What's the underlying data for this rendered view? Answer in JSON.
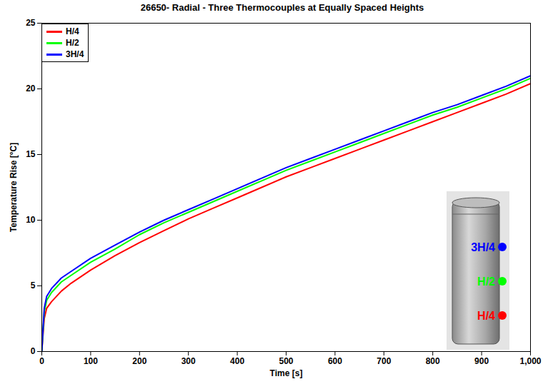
{
  "chart_data": {
    "type": "line",
    "title": "26650- Radial - Three Thermocouples at Equally Spaced Heights",
    "x_label": "Time [s]",
    "y_label": "Temperature Rise [°C]",
    "x": [
      0,
      5,
      10,
      20,
      40,
      60,
      100,
      150,
      200,
      250,
      300,
      350,
      400,
      450,
      500,
      550,
      600,
      650,
      700,
      750,
      800,
      850,
      900,
      950,
      1000
    ],
    "series": [
      {
        "name": "H/4",
        "color": "#ff0000",
        "values": [
          0,
          2.5,
          3.3,
          3.8,
          4.6,
          5.2,
          6.2,
          7.3,
          8.3,
          9.2,
          10.1,
          10.9,
          11.7,
          12.5,
          13.3,
          14.0,
          14.7,
          15.4,
          16.1,
          16.8,
          17.5,
          18.2,
          18.9,
          19.6,
          20.4
        ]
      },
      {
        "name": "H/2",
        "color": "#00ff00",
        "values": [
          0,
          3.0,
          3.9,
          4.5,
          5.3,
          5.8,
          6.8,
          7.8,
          8.9,
          9.8,
          10.6,
          11.4,
          12.2,
          13.0,
          13.8,
          14.5,
          15.2,
          15.9,
          16.6,
          17.3,
          18.0,
          18.6,
          19.3,
          20.0,
          20.8
        ]
      },
      {
        "name": "3H/4",
        "color": "#0000ff",
        "values": [
          0,
          3.3,
          4.2,
          4.8,
          5.6,
          6.1,
          7.1,
          8.1,
          9.1,
          10.0,
          10.8,
          11.6,
          12.4,
          13.2,
          14.0,
          14.7,
          15.4,
          16.1,
          16.8,
          17.5,
          18.2,
          18.8,
          19.5,
          20.2,
          21.0
        ]
      }
    ],
    "xlim": [
      0,
      1000
    ],
    "xticks": [
      0,
      100,
      200,
      300,
      400,
      500,
      600,
      700,
      800,
      900,
      1000
    ],
    "ylim": [
      0,
      25
    ],
    "yticks": [
      0,
      5,
      10,
      15,
      20,
      25
    ],
    "grid": false,
    "legend": "top-left",
    "annotations": [
      "3H/4",
      "H/2",
      "H/4"
    ]
  }
}
